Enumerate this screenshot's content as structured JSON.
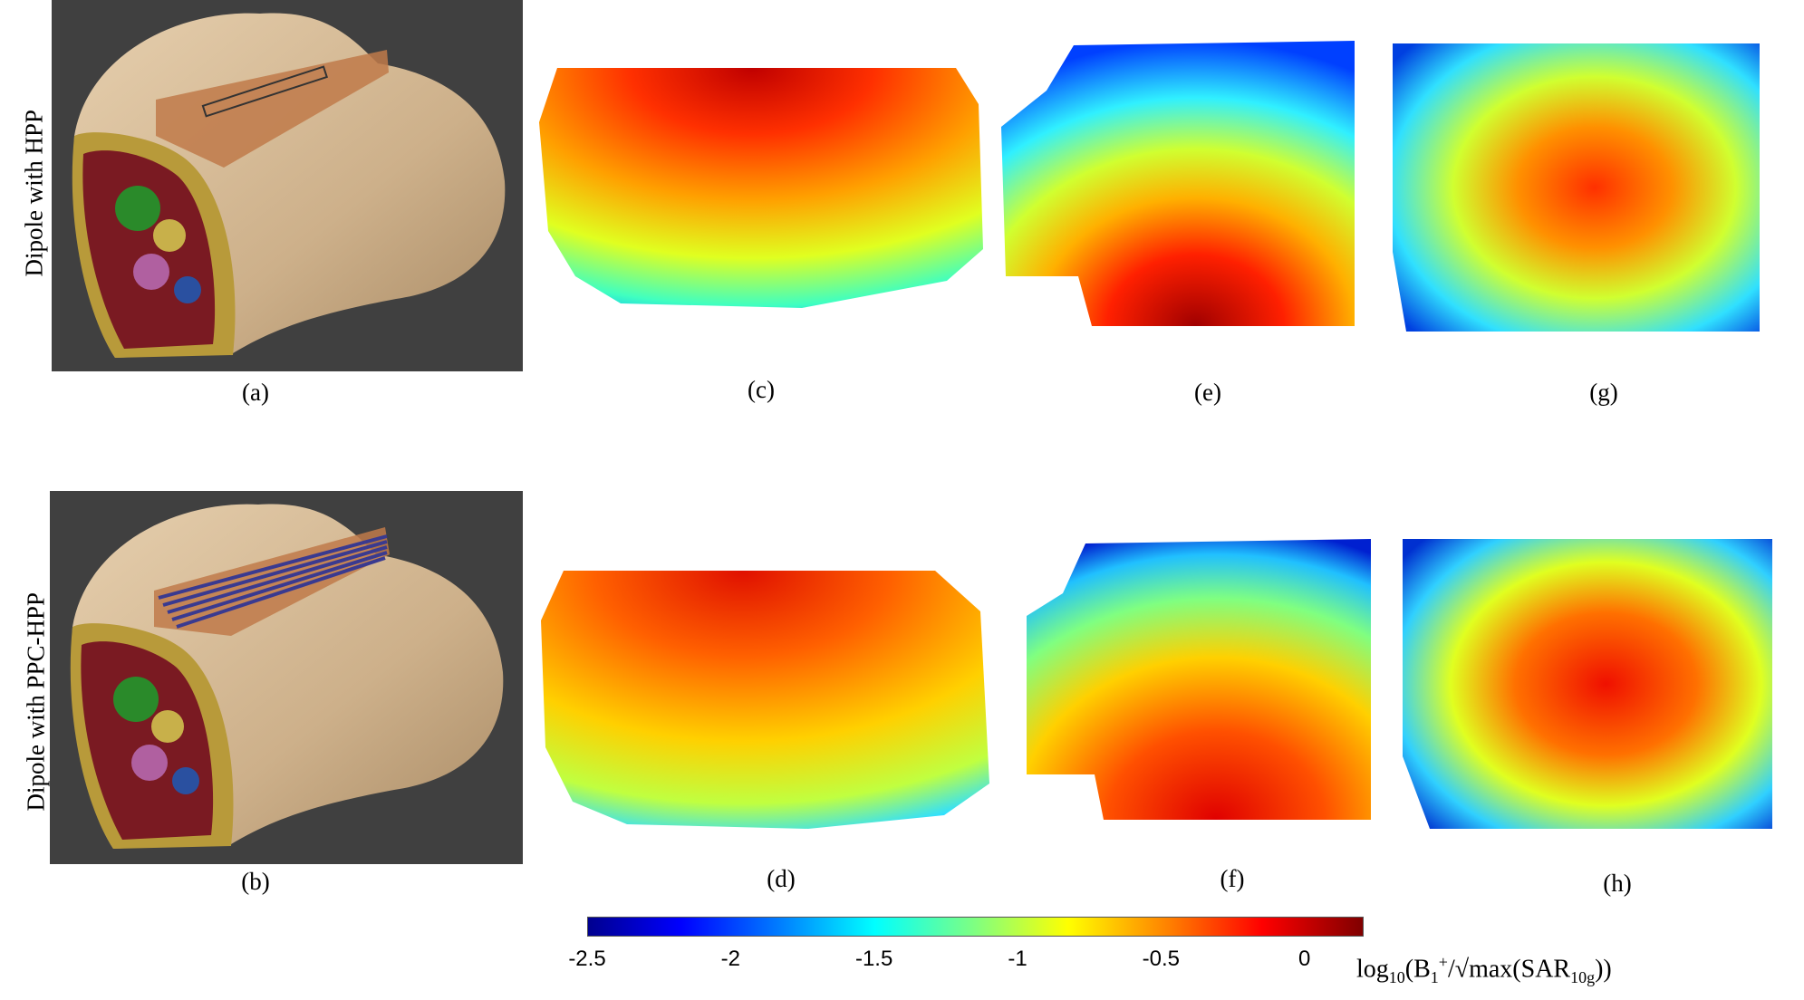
{
  "rows": [
    {
      "label": "Dipole with HPP"
    },
    {
      "label": "Dipole with PPC-HPP"
    }
  ],
  "panels": {
    "a": "(a)",
    "b": "(b)",
    "c": "(c)",
    "d": "(d)",
    "e": "(e)",
    "f": "(f)",
    "g": "(g)",
    "h": "(h)"
  },
  "colorbar": {
    "ticks": [
      "-2.5",
      "-2",
      "-1.5",
      "-1",
      "-0.5",
      "0"
    ],
    "range": [
      -2.5,
      0.2
    ],
    "colormap": "jet",
    "label_parts": {
      "pre": "log",
      "sub1": "10",
      "mid1": "(B",
      "sub2": "1",
      "sup2": "+",
      "mid2": "/√max(SAR",
      "sub3": "10g",
      "post": "))"
    }
  },
  "colors": {
    "background": "#ffffff",
    "render_bg": "#404040",
    "skin": "#d4b48e",
    "muscle": "#7a1a22",
    "fat": "#c8b04a",
    "pad_hpp": "#c07a4a",
    "pad_ppc": "#3a3a90"
  }
}
